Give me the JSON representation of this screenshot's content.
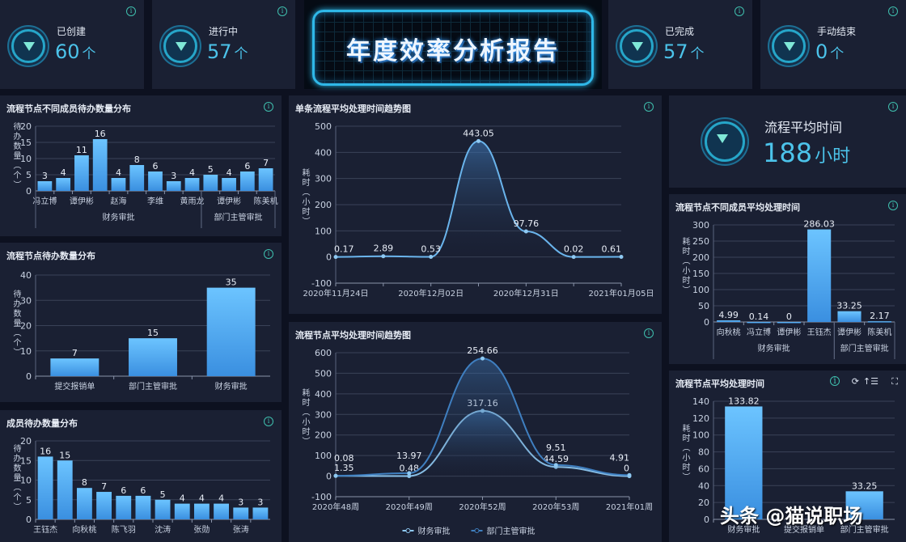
{
  "title": "年度效率分析报告",
  "stats": [
    {
      "label": "已创建",
      "value": "60",
      "unit": "个",
      "icon": "diamond-icon"
    },
    {
      "label": "进行中",
      "value": "57",
      "unit": "个",
      "icon": "diamond-icon"
    },
    {
      "label": "已完成",
      "value": "57",
      "unit": "个",
      "icon": "diamond-icon"
    },
    {
      "label": "手动结束",
      "value": "0",
      "unit": "个",
      "icon": "diamond-icon"
    }
  ],
  "avg_time": {
    "label": "流程平均时间",
    "value": "188",
    "unit": "小时",
    "icon": "diamond-icon"
  },
  "watermark": "头条 @猫说职场",
  "colors": {
    "background": "#0d1120",
    "panel": "#1a2033",
    "bar": "#4aa8f0",
    "line": "#5aa9e6",
    "accent": "#4cc3ea",
    "info": "#3fbfae"
  },
  "chart_data": [
    {
      "id": "c1",
      "type": "bar",
      "title": "流程节点不同成员待办数量分布",
      "ylabel": "待办数量（个）",
      "ylim": [
        0,
        20
      ],
      "yticks": [
        0,
        5,
        10,
        15,
        20
      ],
      "categories": [
        "冯立博",
        "",
        "谭伊彬",
        "",
        "赵海",
        "",
        "李维",
        "",
        "黄雨龙",
        "",
        "谭伊彬",
        "",
        "陈美机"
      ],
      "values": [
        3,
        4,
        11,
        16,
        4,
        8,
        6,
        3,
        4,
        5,
        4,
        6,
        7
      ],
      "groups": [
        {
          "name": "财务审批",
          "start": 0,
          "end": 8
        },
        {
          "name": "部门主管审批",
          "start": 9,
          "end": 12
        }
      ],
      "grid": true
    },
    {
      "id": "c2",
      "type": "bar",
      "title": "流程节点待办数量分布",
      "ylabel": "待办数量（个）",
      "ylim": [
        0,
        40
      ],
      "yticks": [
        0,
        10,
        20,
        30,
        40
      ],
      "categories": [
        "提交报销单",
        "部门主管审批",
        "财务审批"
      ],
      "values": [
        7,
        15,
        35
      ],
      "grid": true
    },
    {
      "id": "c3",
      "type": "bar",
      "title": "成员待办数量分布",
      "ylabel": "待办数量（个）",
      "ylim": [
        0,
        20
      ],
      "yticks": [
        0,
        5,
        10,
        15,
        20
      ],
      "categories": [
        "王钰杰",
        "",
        "向秋桃",
        "",
        "陈飞羽",
        "",
        "沈涛",
        "",
        "张勋",
        "",
        "张涛",
        ""
      ],
      "values": [
        16,
        15,
        8,
        7,
        6,
        6,
        5,
        4,
        4,
        4,
        3,
        3
      ],
      "grid": true
    },
    {
      "id": "c4",
      "type": "line",
      "title": "单条流程平均处理时间趋势图",
      "ylabel": "耗时（小时）",
      "ylim": [
        -100,
        500
      ],
      "yticks": [
        -100,
        0,
        100,
        200,
        300,
        400,
        500
      ],
      "categories": [
        "2020年11月24日",
        "",
        "2020年12月02日",
        "",
        "2020年12月31日",
        "",
        "2021年01月05日"
      ],
      "series": [
        {
          "values": [
            0.17,
            2.89,
            0.53,
            443.05,
            97.76,
            0.02,
            0.61
          ]
        }
      ],
      "grid": true
    },
    {
      "id": "c5",
      "type": "line",
      "stacked": true,
      "title": "流程节点平均处理时间趋势图",
      "ylabel": "耗时（小时）",
      "ylim": [
        -100,
        600
      ],
      "yticks": [
        -100,
        0,
        100,
        200,
        300,
        400,
        500,
        600
      ],
      "categories": [
        "2020年48周",
        "2020年49周",
        "2020年52周",
        "2020年53周",
        "2021年01周"
      ],
      "series": [
        {
          "name": "财务审批",
          "values": [
            1.35,
            0.48,
            317.16,
            44.59,
            0
          ]
        },
        {
          "name": "部门主管审批",
          "values": [
            0.08,
            13.97,
            254.66,
            9.51,
            4.91
          ]
        }
      ],
      "legend": "bottom",
      "grid": true
    },
    {
      "id": "c6",
      "type": "bar",
      "title": "流程节点不同成员平均处理时间",
      "ylabel": "耗时（小时）",
      "ylim": [
        0,
        300
      ],
      "yticks": [
        0,
        50,
        100,
        150,
        200,
        250,
        300
      ],
      "categories": [
        "向秋桃",
        "冯立博",
        "谭伊彬",
        "王钰杰",
        "谭伊彬",
        "陈美机"
      ],
      "values": [
        4.99,
        0.14,
        0,
        286.03,
        33.25,
        2.17
      ],
      "groups": [
        {
          "name": "财务审批",
          "start": 0,
          "end": 3
        },
        {
          "name": "部门主管审批",
          "start": 4,
          "end": 5
        }
      ],
      "grid": true
    },
    {
      "id": "c7",
      "type": "bar",
      "title": "流程节点平均处理时间",
      "ylabel": "耗时（小时）",
      "ylim": [
        0,
        140
      ],
      "yticks": [
        0,
        20,
        40,
        60,
        80,
        100,
        120,
        140
      ],
      "categories": [
        "财务审批",
        "提交报销单",
        "部门主管审批"
      ],
      "values": [
        133.82,
        null,
        33.25
      ],
      "grid": true,
      "toolbar": [
        "info-icon",
        "refresh-icon",
        "sort-icon",
        "fullscreen-icon"
      ]
    }
  ]
}
